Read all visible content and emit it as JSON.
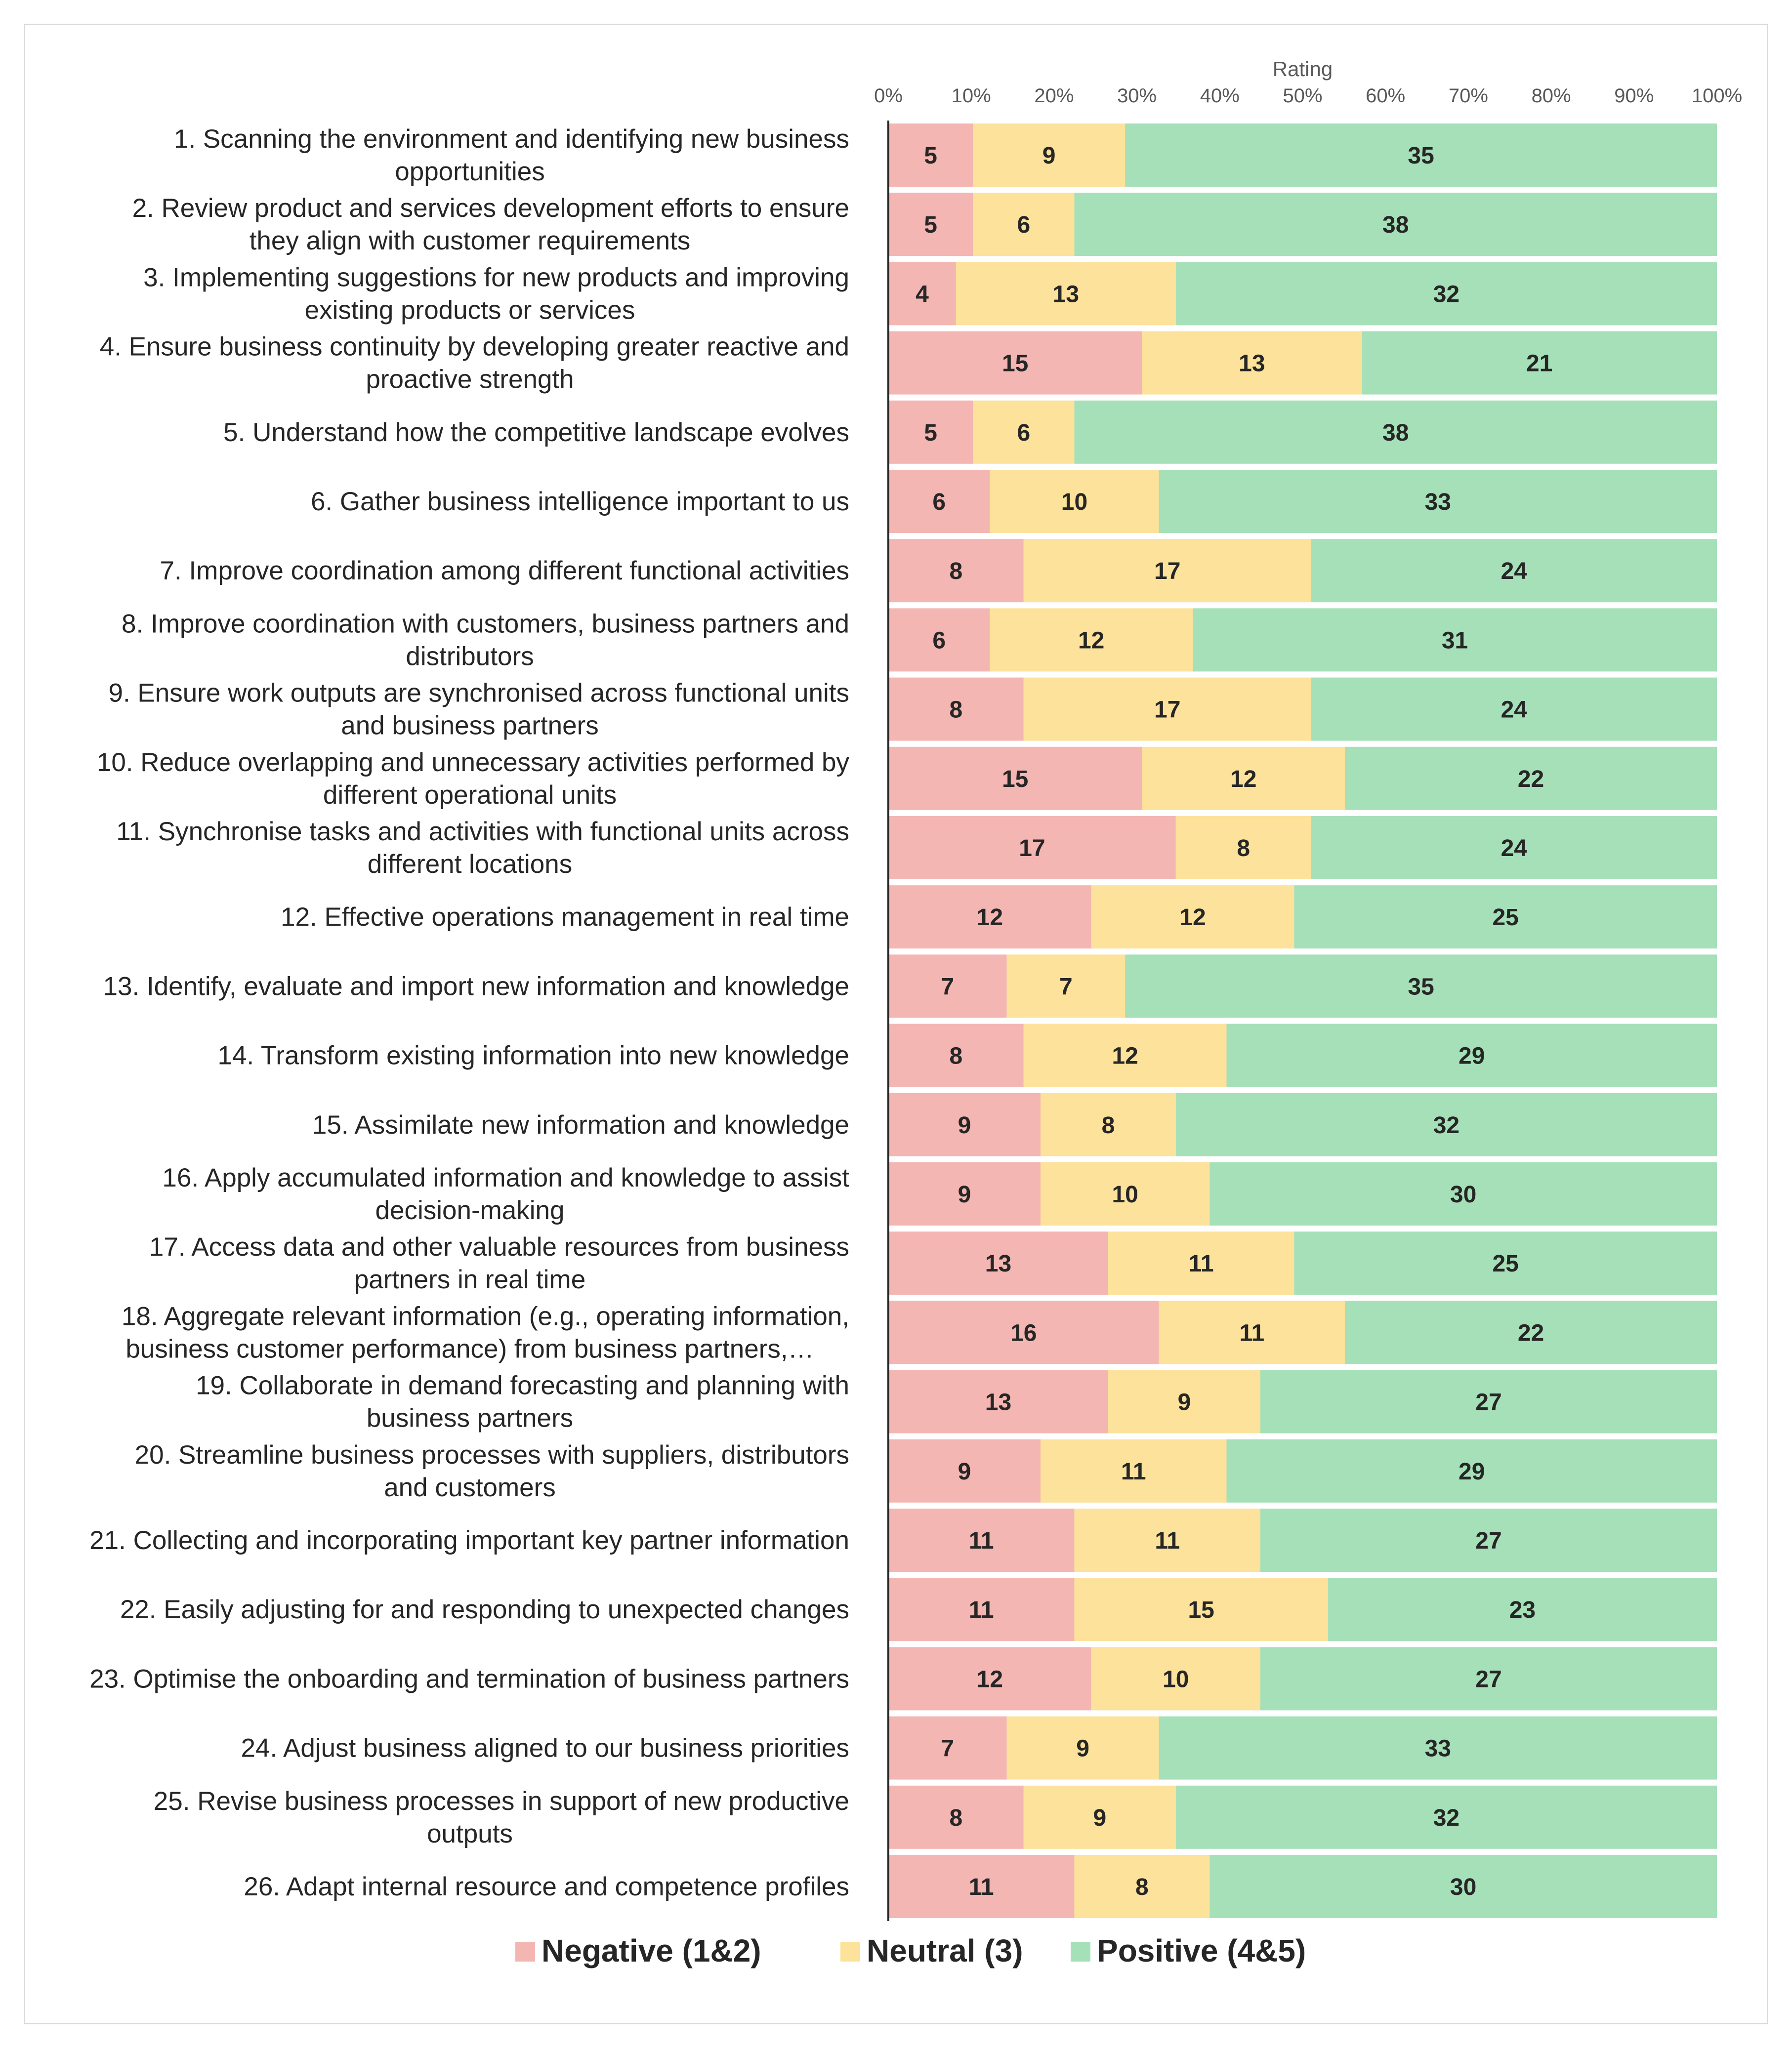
{
  "chart_data": {
    "type": "bar",
    "stacked": "percent",
    "orientation": "horizontal",
    "xlabel": "Rating",
    "xlim": [
      0,
      100
    ],
    "x_ticks": [
      "0%",
      "10%",
      "20%",
      "30%",
      "40%",
      "50%",
      "60%",
      "70%",
      "80%",
      "90%",
      "100%"
    ],
    "legend_position": "bottom",
    "categories": [
      [
        "1. Scanning the environment and identifying new business",
        "opportunities"
      ],
      [
        "2. Review product and services development efforts to ensure",
        "they align with customer requirements"
      ],
      [
        "3. Implementing suggestions for new products and improving",
        "existing products or services"
      ],
      [
        "4. Ensure business continuity by developing greater reactive and",
        "proactive strength"
      ],
      [
        "5. Understand how the competitive landscape evolves"
      ],
      [
        "6. Gather business intelligence important to us"
      ],
      [
        "7. Improve coordination among different functional activities"
      ],
      [
        "8. Improve coordination with customers, business partners and",
        "distributors"
      ],
      [
        "9. Ensure work outputs are synchronised across functional units",
        "and business partners"
      ],
      [
        "10. Reduce overlapping and unnecessary activities performed by",
        "different operational units"
      ],
      [
        "11. Synchronise tasks and activities with functional units across",
        "different locations"
      ],
      [
        "12. Effective operations management in real time"
      ],
      [
        "13. Identify, evaluate and import new information and knowledge"
      ],
      [
        "14. Transform existing information into new knowledge"
      ],
      [
        "15. Assimilate new information and knowledge"
      ],
      [
        "16. Apply accumulated information and knowledge to assist",
        "decision-making"
      ],
      [
        "17. Access data and other valuable resources from business",
        "partners in real time"
      ],
      [
        "18. Aggregate relevant information (e.g., operating information,",
        "business customer performance) from business partners,…"
      ],
      [
        "19. Collaborate in demand forecasting and planning with",
        "business partners"
      ],
      [
        "20. Streamline business processes with suppliers, distributors",
        "and customers"
      ],
      [
        "21. Collecting and incorporating important key partner information"
      ],
      [
        "22. Easily adjusting for and responding to unexpected changes"
      ],
      [
        "23. Optimise the onboarding and termination of business partners"
      ],
      [
        "24. Adjust business aligned to our business priorities"
      ],
      [
        "25. Revise business processes in support of new productive",
        "outputs"
      ],
      [
        "26. Adapt internal resource and competence profiles"
      ]
    ],
    "series": [
      {
        "name": "Negative (1&2)",
        "color": "#f4b6b2",
        "values": [
          5,
          5,
          4,
          15,
          5,
          6,
          8,
          6,
          8,
          15,
          17,
          12,
          7,
          8,
          9,
          9,
          13,
          16,
          13,
          9,
          11,
          11,
          12,
          7,
          8,
          11
        ]
      },
      {
        "name": "Neutral (3)",
        "color": "#fce29a",
        "values": [
          9,
          6,
          13,
          13,
          6,
          10,
          17,
          12,
          17,
          12,
          8,
          12,
          7,
          12,
          8,
          10,
          11,
          11,
          9,
          11,
          11,
          15,
          10,
          9,
          9,
          8
        ]
      },
      {
        "name": "Positive (4&5)",
        "color": "#a6e0b9",
        "values": [
          35,
          38,
          32,
          21,
          38,
          33,
          24,
          31,
          24,
          22,
          24,
          25,
          35,
          29,
          32,
          30,
          25,
          22,
          27,
          29,
          27,
          23,
          27,
          33,
          32,
          30
        ]
      }
    ]
  }
}
